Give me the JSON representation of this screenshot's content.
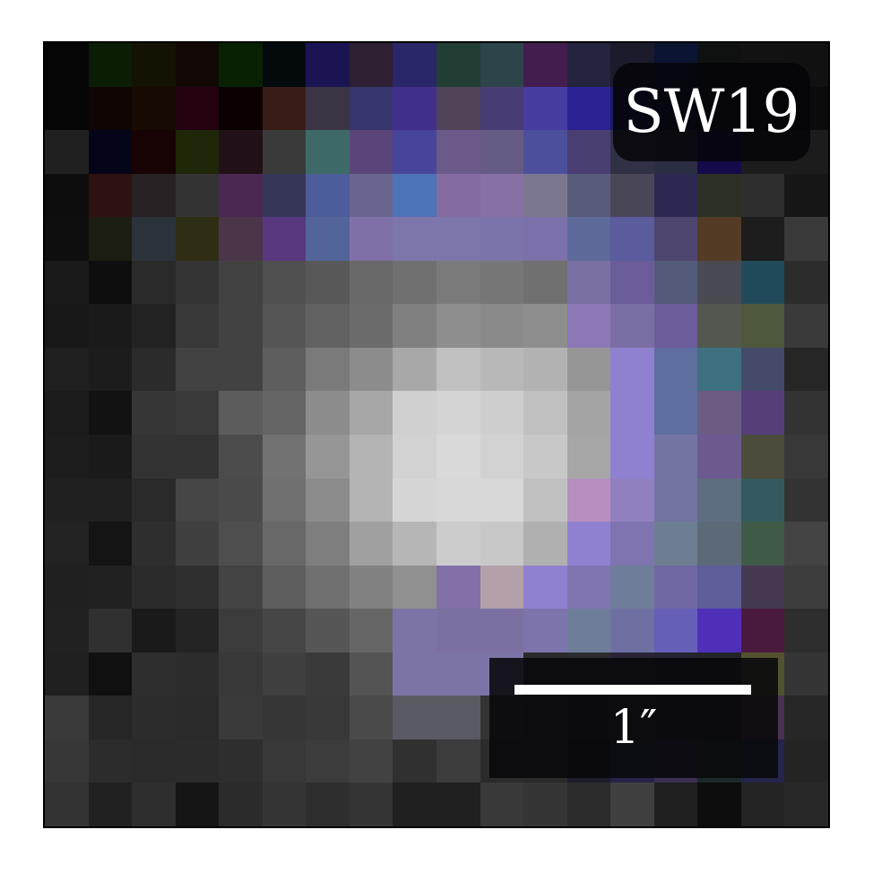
{
  "image": {
    "object_label": "SW19",
    "scale_bar_label": "1″",
    "grid_size": 18,
    "pixels": [
      [
        "#050505",
        "#0b1d05",
        "#131203",
        "#120805",
        "#082102",
        "#040a0c",
        "#1a1552",
        "#2e1f33",
        "#29266a",
        "#213d34",
        "#2d444b",
        "#431d4e",
        "#242441",
        "#1b1b2b",
        "#0b1432",
        "#0f1010",
        "#121212",
        "#111111"
      ],
      [
        "#050505",
        "#0f0503",
        "#170a03",
        "#250212",
        "#090102",
        "#391b17",
        "#3b3445",
        "#36366c",
        "#42318a",
        "#4f4458",
        "#473c74",
        "#473ca0",
        "#2a2293",
        "#1a1a5e",
        "#141336",
        "#101020",
        "#0a0a0a",
        "#0b0b0b"
      ],
      [
        "#202020",
        "#05051a",
        "#170303",
        "#1e2707",
        "#221019",
        "#3a3a3a",
        "#3d6a68",
        "#5b447a",
        "#47459a",
        "#6a5a8a",
        "#665b84",
        "#4c509a",
        "#4a3d72",
        "#313146",
        "#2b2e42",
        "#140a4a",
        "#1c1c1c",
        "#1c1c1c"
      ],
      [
        "#0d0d0d",
        "#2c1210",
        "#282224",
        "#333334",
        "#4a2852",
        "#363658",
        "#4d5c9a",
        "#6a6690",
        "#4c74b6",
        "#846ca2",
        "#8770a4",
        "#7b7790",
        "#585a7a",
        "#494658",
        "#2c2852",
        "#2c3024",
        "#2e2e2e",
        "#161616"
      ],
      [
        "#0e0e0e",
        "#1a1d0f",
        "#2a323a",
        "#2f2e14",
        "#4a3648",
        "#5a3880",
        "#52649a",
        "#8070a8",
        "#7c76aa",
        "#7c76aa",
        "#7a74aa",
        "#7c70aa",
        "#5e6a9a",
        "#5a5c9e",
        "#4e466e",
        "#533b25",
        "#1d1d1d",
        "#3a3a3a"
      ],
      [
        "#1a1a1a",
        "#0e0e0e",
        "#2a2a2a",
        "#343434",
        "#424242",
        "#505050",
        "#585858",
        "#686868",
        "#707070",
        "#7a7a7a",
        "#777777",
        "#707070",
        "#7a70a4",
        "#6c5c9a",
        "#545a7a",
        "#4a4a52",
        "#214b5a",
        "#2c2c2c"
      ],
      [
        "#171717",
        "#1a1a1a",
        "#222222",
        "#383838",
        "#424242",
        "#565656",
        "#626262",
        "#6c6c6c",
        "#808080",
        "#8e8e8e",
        "#8a8a8a",
        "#8e8e8e",
        "#8d78b8",
        "#7b6ea4",
        "#6c5c9a",
        "#525850",
        "#4d583c",
        "#3a3a3a"
      ],
      [
        "#1f1f1f",
        "#1c1c1c",
        "#2b2b2b",
        "#424242",
        "#424242",
        "#5e5e5e",
        "#7a7a7a",
        "#8c8c8c",
        "#a8a8a8",
        "#c0c0c0",
        "#b8b8b8",
        "#b2b2b2",
        "#969696",
        "#9080d0",
        "#5e6e9e",
        "#3e7080",
        "#454a6a",
        "#262626"
      ],
      [
        "#1b1b1b",
        "#121212",
        "#363636",
        "#3a3a3a",
        "#5c5c5c",
        "#646464",
        "#8c8c8c",
        "#a6a6a6",
        "#d0d0d0",
        "#d4d4d4",
        "#cecece",
        "#c0c0c0",
        "#a4a4a4",
        "#9080d0",
        "#5e6e9e",
        "#6c5c84",
        "#563f78",
        "#333333"
      ],
      [
        "#1d1d1d",
        "#1a1a1a",
        "#333333",
        "#333333",
        "#4c4c4c",
        "#727272",
        "#969696",
        "#b4b4b4",
        "#d2d2d2",
        "#dadada",
        "#d2d2d2",
        "#c8c8c8",
        "#a6a6a6",
        "#9080d0",
        "#7474a2",
        "#6a5a8e",
        "#4b4c3c",
        "#383838"
      ],
      [
        "#202020",
        "#202020",
        "#2a2a2a",
        "#464646",
        "#4a4a4a",
        "#707070",
        "#8c8c8c",
        "#b4b4b4",
        "#d6d6d6",
        "#d8d8d8",
        "#d8d8d8",
        "#c0c0c0",
        "#b68ec0",
        "#9080c0",
        "#7474a2",
        "#5e6e80",
        "#345a60",
        "#333333"
      ],
      [
        "#222222",
        "#141414",
        "#2e2e2e",
        "#404040",
        "#4e4e4e",
        "#686868",
        "#7e7e7e",
        "#a0a0a0",
        "#b6b6b6",
        "#cccccc",
        "#c8c8c8",
        "#b0b0b0",
        "#9080d0",
        "#8074b0",
        "#6e7e92",
        "#5c6a78",
        "#405a48",
        "#444444"
      ],
      [
        "#202020",
        "#212121",
        "#2b2b2b",
        "#2f2f2f",
        "#434343",
        "#5e5e5e",
        "#707070",
        "#828282",
        "#909090",
        "#8270a8",
        "#b4a0a8",
        "#9080d0",
        "#8074b0",
        "#6e7e9a",
        "#7068a2",
        "#5e5e9a",
        "#463a52",
        "#3c3c3c"
      ],
      [
        "#212121",
        "#303030",
        "#1a1a1a",
        "#242424",
        "#3c3c3c",
        "#464646",
        "#565656",
        "#666666",
        "#7c74a6",
        "#7c70a2",
        "#7c70a2",
        "#7c74aa",
        "#6e7e9a",
        "#6e70a2",
        "#6660b8",
        "#4e30b8",
        "#4a1a3e",
        "#2d2d2d"
      ],
      [
        "#202020",
        "#101010",
        "#2e2e2e",
        "#2c2c2c",
        "#383838",
        "#404040",
        "#3a3a3a",
        "#545454",
        "#7c74a6",
        "#7c74a6",
        "#7c74a6",
        "#2a2a2a",
        "#2c2c30",
        "#2a2436",
        "#242430",
        "#222428",
        "#525230",
        "#353535"
      ],
      [
        "#3a3a3a",
        "#262626",
        "#2c2c2c",
        "#2a2a2a",
        "#3a3a3a",
        "#363636",
        "#383838",
        "#4a4a4a",
        "#5a5a62",
        "#5a5a62",
        "#333333",
        "#2a2a2a",
        "#222226",
        "#2a2236",
        "#222024",
        "#201a26",
        "#4a3052",
        "#272727"
      ],
      [
        "#373737",
        "#2c2c2c",
        "#2a2a2a",
        "#2b2b2b",
        "#2e2e2e",
        "#383838",
        "#3c3c3c",
        "#424242",
        "#303030",
        "#3c3c3c",
        "#2b2b2b",
        "#2a2a2a",
        "#1c1c2c",
        "#262248",
        "#3c2e52",
        "#1a2a2a",
        "#24244c",
        "#242424"
      ],
      [
        "#333333",
        "#212121",
        "#2e2e2e",
        "#151515",
        "#2b2b2b",
        "#353535",
        "#2e2e2e",
        "#353535",
        "#202020",
        "#202020",
        "#393939",
        "#353535",
        "#2c2c2c",
        "#404040",
        "#202020",
        "#0d0d0d",
        "#242424",
        "#282828"
      ]
    ]
  }
}
